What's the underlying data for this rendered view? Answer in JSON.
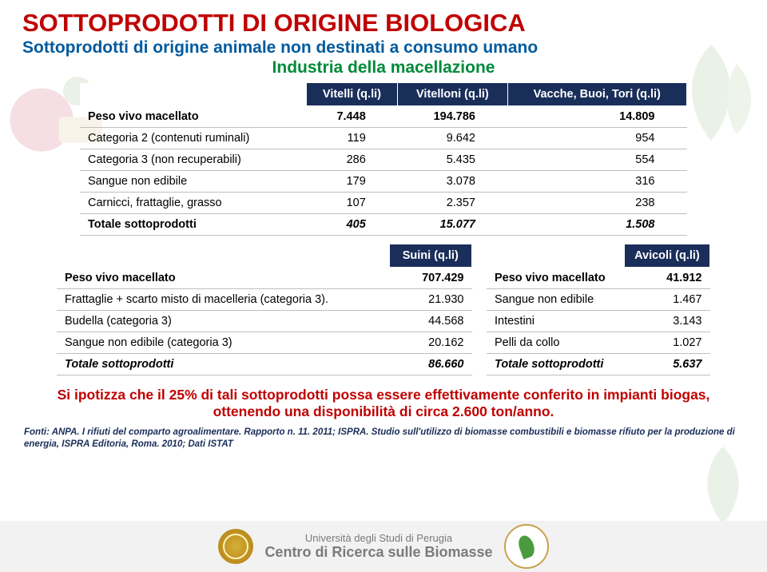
{
  "title": "SOTTOPRODOTTI DI ORIGINE BIOLOGICA",
  "subtitle": "Sottoprodotti di origine animale non destinati a consumo umano",
  "subtitle2": "Industria della macellazione",
  "table_top": {
    "header_bg": "#1a2e5a",
    "header_fg": "#ffffff",
    "columns": [
      "",
      "Vitelli (q.li)",
      "Vitelloni (q.li)",
      "Vacche, Buoi, Tori (q.li)"
    ],
    "rows": [
      {
        "label": "Peso vivo macellato",
        "v": [
          "7.448",
          "194.786",
          "14.809"
        ],
        "bold": true
      },
      {
        "label": "Categoria 2 (contenuti ruminali)",
        "v": [
          "119",
          "9.642",
          "954"
        ],
        "bold": false
      },
      {
        "label": "Categoria 3 (non recuperabili)",
        "v": [
          "286",
          "5.435",
          "554"
        ],
        "bold": false
      },
      {
        "label": "Sangue non edibile",
        "v": [
          "179",
          "3.078",
          "316"
        ],
        "bold": false
      },
      {
        "label": "Carnicci, frattaglie, grasso",
        "v": [
          "107",
          "2.357",
          "238"
        ],
        "bold": false
      },
      {
        "label": "Totale sottoprodotti",
        "v": [
          "405",
          "15.077",
          "1.508"
        ],
        "bold": true,
        "italic": true
      }
    ]
  },
  "table_b": {
    "columns": [
      "",
      "Suini (q.li)"
    ],
    "rows": [
      {
        "label": "Peso vivo macellato",
        "v": "707.429",
        "bold": true
      },
      {
        "label": "Frattaglie + scarto misto di macelleria (categoria 3).",
        "v": "21.930",
        "bold": false
      },
      {
        "label": "Budella (categoria 3)",
        "v": "44.568",
        "bold": false
      },
      {
        "label": "Sangue non edibile (categoria 3)",
        "v": "20.162",
        "bold": false
      },
      {
        "label": "Totale sottoprodotti",
        "v": "86.660",
        "bold": true,
        "italic": true
      }
    ]
  },
  "table_c": {
    "columns": [
      "",
      "Avicoli (q.li)"
    ],
    "rows": [
      {
        "label": "Peso vivo macellato",
        "v": "41.912",
        "bold": true
      },
      {
        "label": "Sangue non edibile",
        "v": "1.467",
        "bold": false
      },
      {
        "label": "Intestini",
        "v": "3.143",
        "bold": false
      },
      {
        "label": "Pelli da collo",
        "v": "1.027",
        "bold": false
      },
      {
        "label": "Totale sottoprodotti",
        "v": "5.637",
        "bold": true,
        "italic": true
      }
    ]
  },
  "note": "Si ipotizza che il 25% di tali sottoprodotti possa essere effettivamente conferito in impianti biogas, ottenendo una disponibilità di circa 2.600 ton/anno.",
  "source": "Fonti: ANPA. I rifiuti del comparto agroalimentare. Rapporto n. 11. 2011; ISPRA. Studio sull'utilizzo di biomasse combustibili e biomasse rifiuto per la produzione di energia, ISPRA Editoria, Roma. 2010; Dati ISTAT",
  "footer": {
    "line1": "Università degli Studi di Perugia",
    "line2": "Centro di Ricerca sulle Biomasse"
  },
  "colors": {
    "title": "#c00000",
    "subtitle_blue": "#005a9e",
    "subtitle_green": "#008a3a",
    "table_header_bg": "#1a2e5a",
    "table_header_fg": "#ffffff",
    "row_border": "#bfbfbf",
    "note_red": "#c00000",
    "source_navy": "#1a2e5a",
    "footer_bg": "#f2f2f2",
    "footer_text": "#7a7a7a"
  },
  "fonts": {
    "title_pt": 31,
    "subtitle_pt": 21,
    "table_pt": 14.5,
    "note_pt": 17.5,
    "source_pt": 11.5
  }
}
